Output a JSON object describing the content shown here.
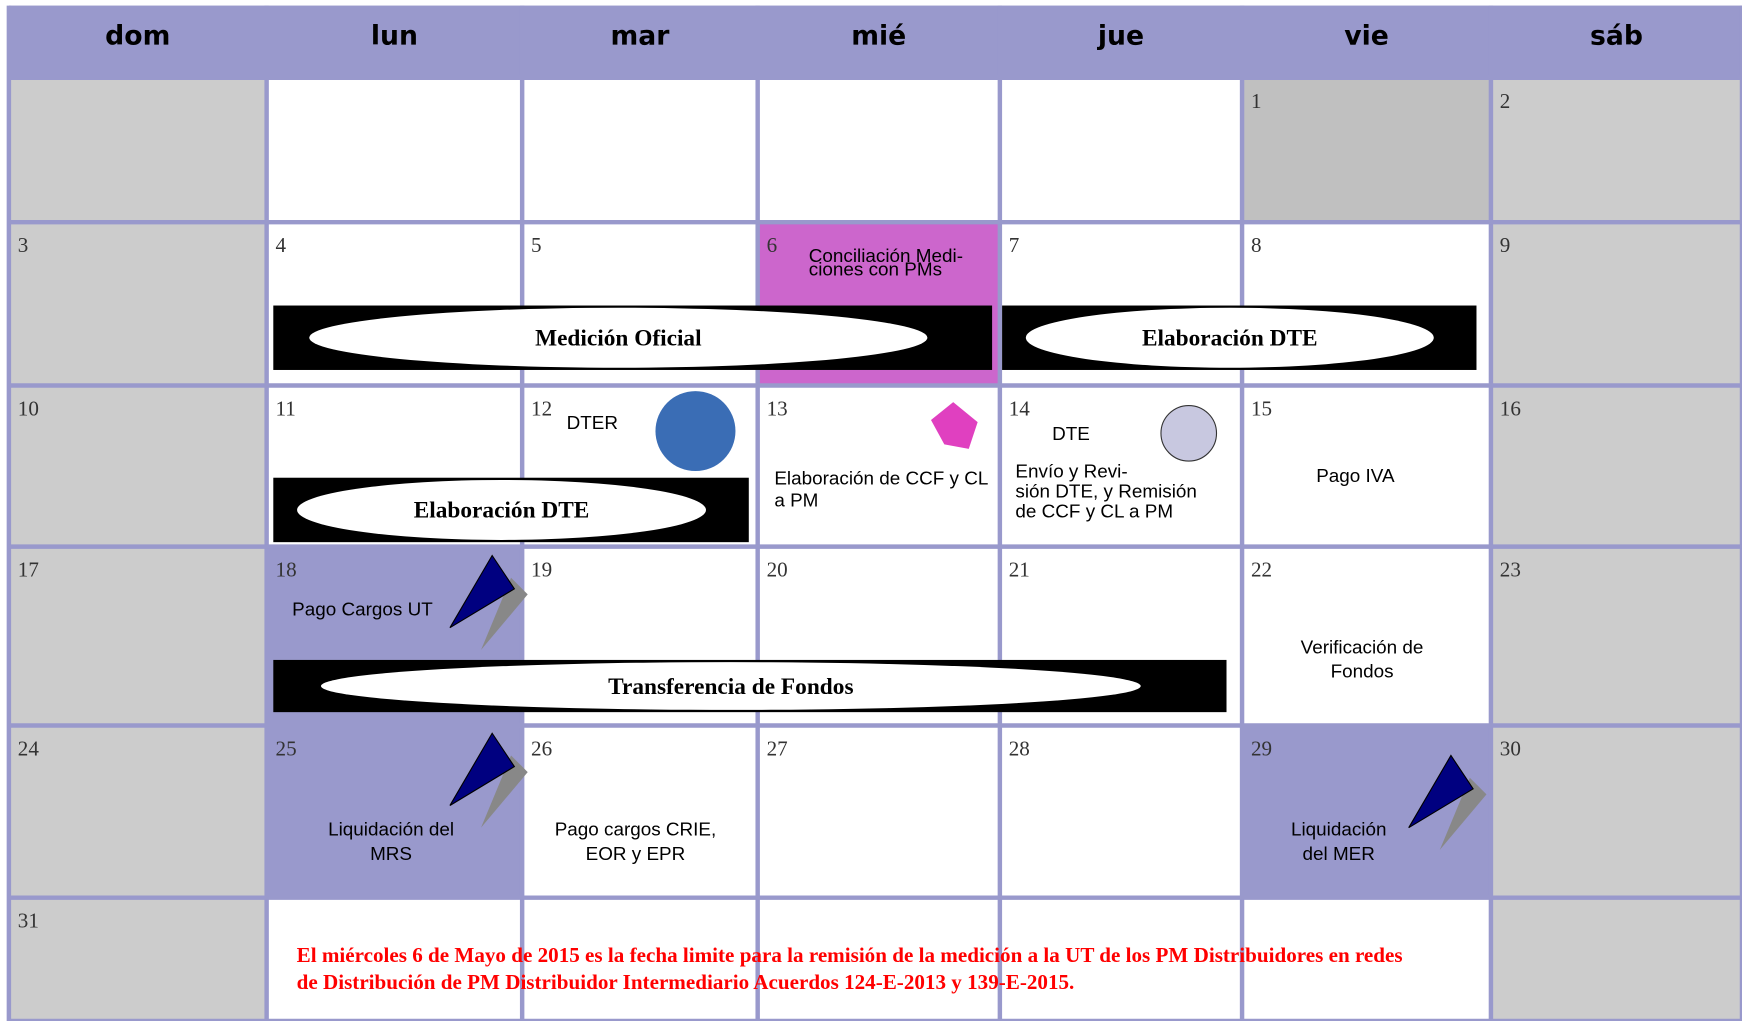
{
  "calendar": {
    "days": [
      "dom",
      "lun",
      "mar",
      "mié",
      "jue",
      "vie",
      "sáb"
    ],
    "weeks": [
      [
        null,
        null,
        null,
        null,
        null,
        1,
        2
      ],
      [
        3,
        4,
        5,
        6,
        7,
        8,
        9
      ],
      [
        10,
        11,
        12,
        13,
        14,
        15,
        16
      ],
      [
        17,
        18,
        19,
        20,
        21,
        22,
        23
      ],
      [
        24,
        25,
        26,
        27,
        28,
        29,
        30
      ],
      [
        31,
        null,
        null,
        null,
        null,
        null,
        null
      ]
    ],
    "events": [
      {
        "lines": [
          "Conciliación Medi-",
          "ciones con PMs"
        ]
      },
      {
        "lines": [
          "DTER"
        ]
      },
      {
        "lines": [
          "Elaboración de CCF y CL",
          "a PM"
        ]
      },
      {
        "lines": [
          "DTE"
        ]
      },
      {
        "lines": [
          "Envío y  Revi-",
          "sión DTE, y Remisión",
          "de CCF y CL a PM"
        ]
      },
      {
        "lines": [
          "Pago  IVA"
        ]
      },
      {
        "lines": [
          "Pago Cargos UT"
        ]
      },
      {
        "lines": [
          "Verificación de",
          "Fondos"
        ]
      },
      {
        "lines": [
          "Liquidación  del",
          "MRS"
        ]
      },
      {
        "lines": [
          "Pago cargos CRIE,",
          "EOR y EPR"
        ]
      },
      {
        "lines": [
          "Liquidación",
          "del MER"
        ]
      }
    ],
    "banners": [
      "Medición Oficial",
      "Elaboración DTE",
      "Elaboración DTE",
      "Transferencia de Fondos"
    ],
    "note": [
      "El miércoles 6 de Mayo de 2015 es la fecha limite para la remisión de la medición a la UT de los PM Distribuidores en redes",
      "de Distribución de PM Distribuidor Intermediario Acuerdos 124-E-2013 y 139-E-2015."
    ]
  }
}
